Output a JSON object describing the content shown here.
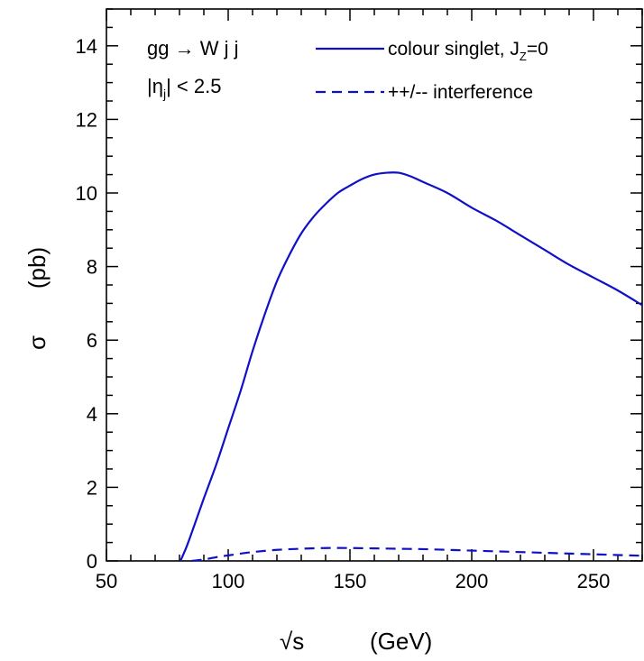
{
  "chart_data": {
    "type": "line",
    "title": "",
    "xlabel_symbol": "√s",
    "xlabel_unit": "(GeV)",
    "ylabel_symbol": "σ",
    "ylabel_unit": "(pb)",
    "xlim": [
      50,
      270
    ],
    "ylim": [
      0,
      15
    ],
    "x_major_ticks": [
      50,
      100,
      150,
      200,
      250
    ],
    "y_major_ticks": [
      0,
      2,
      4,
      6,
      8,
      10,
      12,
      14
    ],
    "x_minor_step": 10,
    "y_minor_step": 0.5,
    "grid": false,
    "legend_position": "top-right",
    "annotation": {
      "process_main": "gg → W j j",
      "cut_prefix": "|η",
      "cut_sub": "j",
      "cut_suffix": "| < 2.5"
    },
    "series": [
      {
        "name_main": "colour singlet, J",
        "name_sub": "Z",
        "name_tail": "=0",
        "style": "solid",
        "color": "#1010c8",
        "x": [
          80.4,
          83,
          86,
          90,
          95,
          100,
          105,
          110,
          115,
          120,
          125,
          130,
          135,
          140,
          145,
          150,
          155,
          160,
          165,
          170,
          175,
          180,
          190,
          200,
          210,
          220,
          230,
          240,
          250,
          260,
          270
        ],
        "y": [
          0,
          0.4,
          0.95,
          1.7,
          2.6,
          3.6,
          4.6,
          5.7,
          6.7,
          7.6,
          8.3,
          8.9,
          9.35,
          9.7,
          10.0,
          10.2,
          10.38,
          10.5,
          10.55,
          10.55,
          10.45,
          10.3,
          10.0,
          9.6,
          9.25,
          8.85,
          8.45,
          8.05,
          7.7,
          7.35,
          6.95
        ]
      },
      {
        "name": "++/-- interference",
        "style": "dashed",
        "color": "#1010c8",
        "x": [
          85,
          90,
          95,
          100,
          110,
          120,
          130,
          140,
          150,
          160,
          170,
          180,
          190,
          200,
          210,
          220,
          230,
          240,
          250,
          260,
          270
        ],
        "y": [
          0,
          0.04,
          0.1,
          0.15,
          0.24,
          0.3,
          0.33,
          0.35,
          0.35,
          0.34,
          0.33,
          0.32,
          0.3,
          0.28,
          0.26,
          0.24,
          0.22,
          0.2,
          0.18,
          0.16,
          0.14
        ]
      }
    ]
  }
}
